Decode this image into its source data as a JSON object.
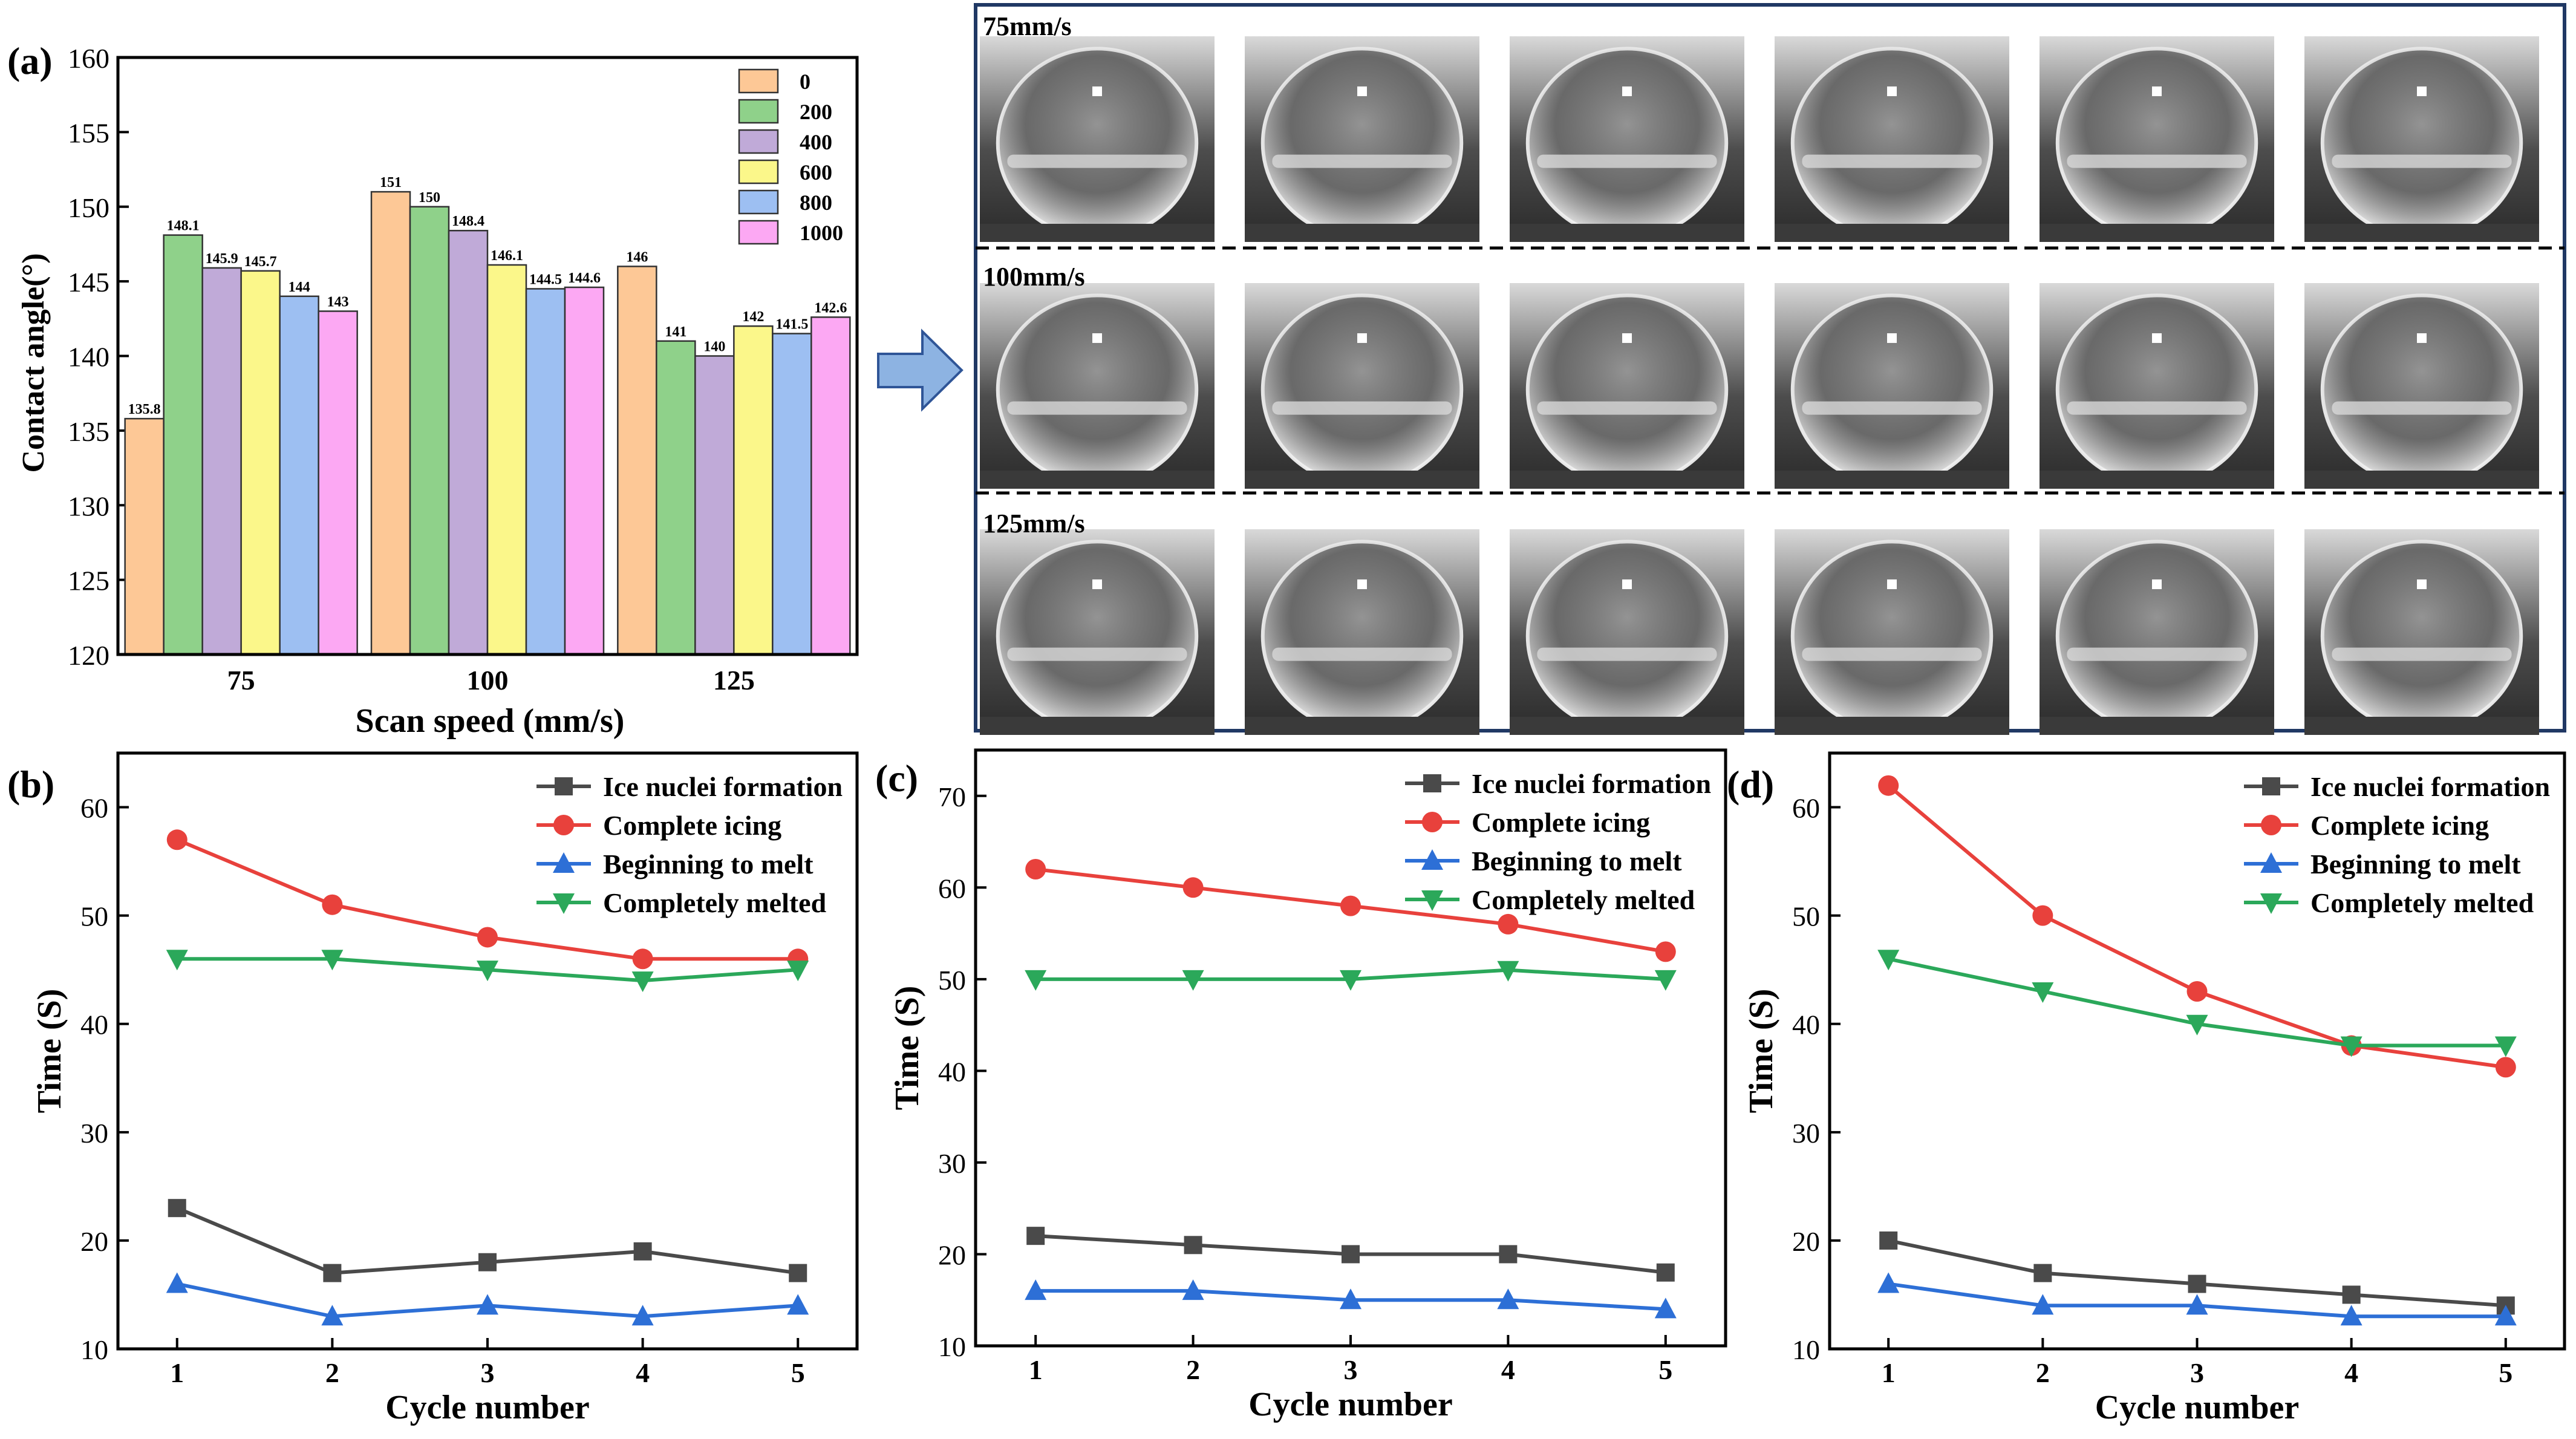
{
  "panel_a": {
    "label": "(a)",
    "chart_data": {
      "type": "bar",
      "categories": [
        "75",
        "100",
        "125"
      ],
      "series": [
        {
          "name": "0",
          "color": "#fdc896",
          "values": [
            135.8,
            151,
            146
          ]
        },
        {
          "name": "200",
          "color": "#8fd18a",
          "values": [
            148.1,
            150,
            141
          ]
        },
        {
          "name": "400",
          "color": "#c0aad8",
          "values": [
            145.9,
            148.4,
            140
          ]
        },
        {
          "name": "600",
          "color": "#fbf78a",
          "values": [
            145.7,
            146.1,
            142
          ]
        },
        {
          "name": "800",
          "color": "#9dbff2",
          "values": [
            144,
            144.5,
            141.5
          ]
        },
        {
          "name": "1000",
          "color": "#fca8f3",
          "values": [
            143,
            144.6,
            142.6
          ]
        }
      ],
      "value_labels": [
        [
          "135.8",
          "148.1",
          "145.9",
          "145.7",
          "144",
          "143"
        ],
        [
          "151",
          "150",
          "148.4",
          "146.1",
          "144.5",
          "144.6"
        ],
        [
          "146",
          "141",
          "140",
          "142",
          "141.5",
          "142.6"
        ]
      ],
      "ylim": [
        120,
        160
      ],
      "yticks": [
        "120",
        "125",
        "130",
        "135",
        "140",
        "145",
        "150",
        "155",
        "160"
      ],
      "xlabel": "Scan speed (mm/s)",
      "ylabel": "Contact angle(°)",
      "legend_position": "top-right"
    }
  },
  "photo_panel": {
    "rows": [
      {
        "label": "75mm/s"
      },
      {
        "label": "100mm/s"
      },
      {
        "label": "125mm/s"
      }
    ],
    "images_per_row": 6
  },
  "line_panels": [
    {
      "label": "(b)",
      "chart_data": {
        "type": "line",
        "x": [
          1,
          2,
          3,
          4,
          5
        ],
        "xticks": [
          "1",
          "2",
          "3",
          "4",
          "5"
        ],
        "ylim": [
          10,
          65
        ],
        "yticks": [
          "10",
          "20",
          "30",
          "40",
          "50",
          "60"
        ],
        "xlabel": "Cycle number",
        "ylabel": "Time (S)",
        "legend_position": "top-right",
        "series": [
          {
            "name": "Ice nuclei formation",
            "color": "#4a4a4a",
            "marker": "square",
            "values": [
              23,
              17,
              18,
              19,
              17
            ]
          },
          {
            "name": "Complete icing",
            "color": "#e8413c",
            "marker": "circle",
            "values": [
              57,
              51,
              48,
              46,
              46
            ]
          },
          {
            "name": "Beginning to melt",
            "color": "#2d6fd6",
            "marker": "triangle-up",
            "values": [
              16,
              13,
              14,
              13,
              14
            ]
          },
          {
            "name": "Completely melted",
            "color": "#2ba85a",
            "marker": "triangle-down",
            "values": [
              46,
              46,
              45,
              44,
              45
            ]
          }
        ]
      }
    },
    {
      "label": "(c)",
      "chart_data": {
        "type": "line",
        "x": [
          1,
          2,
          3,
          4,
          5
        ],
        "xticks": [
          "1",
          "2",
          "3",
          "4",
          "5"
        ],
        "ylim": [
          10,
          75
        ],
        "yticks": [
          "10",
          "20",
          "30",
          "40",
          "50",
          "60",
          "70"
        ],
        "xlabel": "Cycle number",
        "ylabel": "Time (S)",
        "legend_position": "top-right",
        "series": [
          {
            "name": "Ice nuclei formation",
            "color": "#4a4a4a",
            "marker": "square",
            "values": [
              22,
              21,
              20,
              20,
              18
            ]
          },
          {
            "name": "Complete icing",
            "color": "#e8413c",
            "marker": "circle",
            "values": [
              62,
              60,
              58,
              56,
              53
            ]
          },
          {
            "name": "Beginning to melt",
            "color": "#2d6fd6",
            "marker": "triangle-up",
            "values": [
              16,
              16,
              15,
              15,
              14
            ]
          },
          {
            "name": "Completely melted",
            "color": "#2ba85a",
            "marker": "triangle-down",
            "values": [
              50,
              50,
              50,
              51,
              50
            ]
          }
        ]
      }
    },
    {
      "label": "(d)",
      "chart_data": {
        "type": "line",
        "x": [
          1,
          2,
          3,
          4,
          5
        ],
        "xticks": [
          "1",
          "2",
          "3",
          "4",
          "5"
        ],
        "ylim": [
          10,
          65
        ],
        "yticks": [
          "10",
          "20",
          "30",
          "40",
          "50",
          "60"
        ],
        "xlabel": "Cycle number",
        "ylabel": "Time (S)",
        "legend_position": "top-right",
        "series": [
          {
            "name": "Ice nuclei formation",
            "color": "#4a4a4a",
            "marker": "square",
            "values": [
              20,
              17,
              16,
              15,
              14
            ]
          },
          {
            "name": "Complete icing",
            "color": "#e8413c",
            "marker": "circle",
            "values": [
              62,
              50,
              43,
              38,
              36
            ]
          },
          {
            "name": "Beginning to melt",
            "color": "#2d6fd6",
            "marker": "triangle-up",
            "values": [
              16,
              14,
              14,
              13,
              13
            ]
          },
          {
            "name": "Completely melted",
            "color": "#2ba85a",
            "marker": "triangle-down",
            "values": [
              46,
              43,
              40,
              38,
              38
            ]
          }
        ]
      }
    }
  ]
}
